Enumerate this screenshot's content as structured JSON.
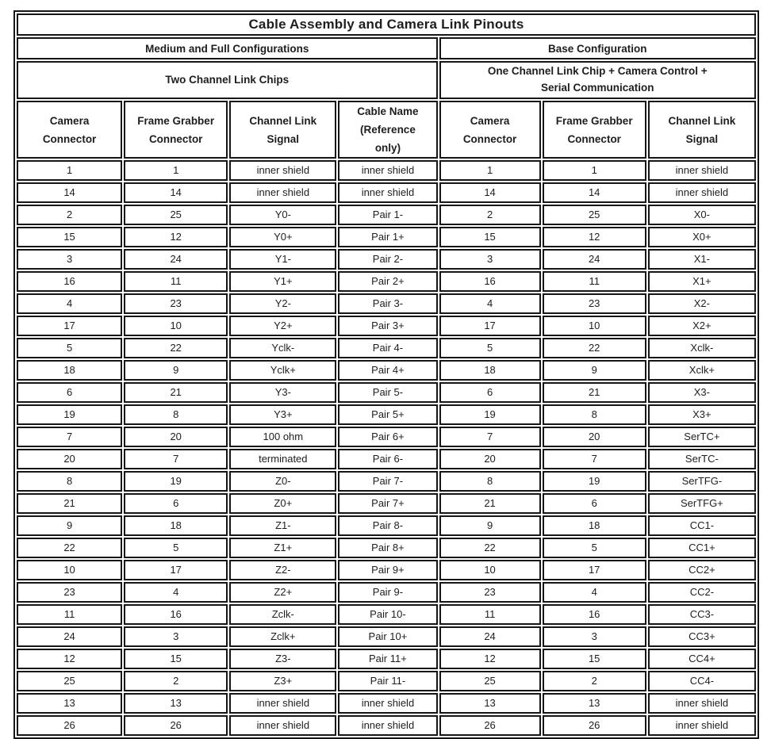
{
  "title": "Cable Assembly and Camera Link Pinouts",
  "sections": {
    "left": {
      "config": "Medium and Full Configurations",
      "chips": "Two Channel Link Chips",
      "columns": [
        "Camera Connector",
        "Frame Grabber Connector",
        "Channel Link Signal",
        "Cable Name (Reference only)"
      ]
    },
    "right": {
      "config": "Base Configuration",
      "chips": "One Channel Link Chip + Camera Control + Serial Communication",
      "columns": [
        "Camera Connector",
        "Frame Grabber Connector",
        "Channel Link Signal"
      ]
    }
  },
  "rows": [
    [
      "1",
      "1",
      "inner shield",
      "inner shield",
      "1",
      "1",
      "inner shield"
    ],
    [
      "14",
      "14",
      "inner shield",
      "inner shield",
      "14",
      "14",
      "inner shield"
    ],
    [
      "2",
      "25",
      "Y0-",
      "Pair 1-",
      "2",
      "25",
      "X0-"
    ],
    [
      "15",
      "12",
      "Y0+",
      "Pair 1+",
      "15",
      "12",
      "X0+"
    ],
    [
      "3",
      "24",
      "Y1-",
      "Pair 2-",
      "3",
      "24",
      "X1-"
    ],
    [
      "16",
      "11",
      "Y1+",
      "Pair 2+",
      "16",
      "11",
      "X1+"
    ],
    [
      "4",
      "23",
      "Y2-",
      "Pair 3-",
      "4",
      "23",
      "X2-"
    ],
    [
      "17",
      "10",
      "Y2+",
      "Pair 3+",
      "17",
      "10",
      "X2+"
    ],
    [
      "5",
      "22",
      "Yclk-",
      "Pair 4-",
      "5",
      "22",
      "Xclk-"
    ],
    [
      "18",
      "9",
      "Yclk+",
      "Pair 4+",
      "18",
      "9",
      "Xclk+"
    ],
    [
      "6",
      "21",
      "Y3-",
      "Pair 5-",
      "6",
      "21",
      "X3-"
    ],
    [
      "19",
      "8",
      "Y3+",
      "Pair 5+",
      "19",
      "8",
      "X3+"
    ],
    [
      "7",
      "20",
      "100 ohm",
      "Pair 6+",
      "7",
      "20",
      "SerTC+"
    ],
    [
      "20",
      "7",
      "terminated",
      "Pair 6-",
      "20",
      "7",
      "SerTC-"
    ],
    [
      "8",
      "19",
      "Z0-",
      "Pair 7-",
      "8",
      "19",
      "SerTFG-"
    ],
    [
      "21",
      "6",
      "Z0+",
      "Pair 7+",
      "21",
      "6",
      "SerTFG+"
    ],
    [
      "9",
      "18",
      "Z1-",
      "Pair 8-",
      "9",
      "18",
      "CC1-"
    ],
    [
      "22",
      "5",
      "Z1+",
      "Pair 8+",
      "22",
      "5",
      "CC1+"
    ],
    [
      "10",
      "17",
      "Z2-",
      "Pair 9+",
      "10",
      "17",
      "CC2+"
    ],
    [
      "23",
      "4",
      "Z2+",
      "Pair 9-",
      "23",
      "4",
      "CC2-"
    ],
    [
      "11",
      "16",
      "Zclk-",
      "Pair 10-",
      "11",
      "16",
      "CC3-"
    ],
    [
      "24",
      "3",
      "Zclk+",
      "Pair 10+",
      "24",
      "3",
      "CC3+"
    ],
    [
      "12",
      "15",
      "Z3-",
      "Pair 11+",
      "12",
      "15",
      "CC4+"
    ],
    [
      "25",
      "2",
      "Z3+",
      "Pair 11-",
      "25",
      "2",
      "CC4-"
    ],
    [
      "13",
      "13",
      "inner shield",
      "inner shield",
      "13",
      "13",
      "inner shield"
    ],
    [
      "26",
      "26",
      "inner shield",
      "inner shield",
      "26",
      "26",
      "inner shield"
    ]
  ]
}
